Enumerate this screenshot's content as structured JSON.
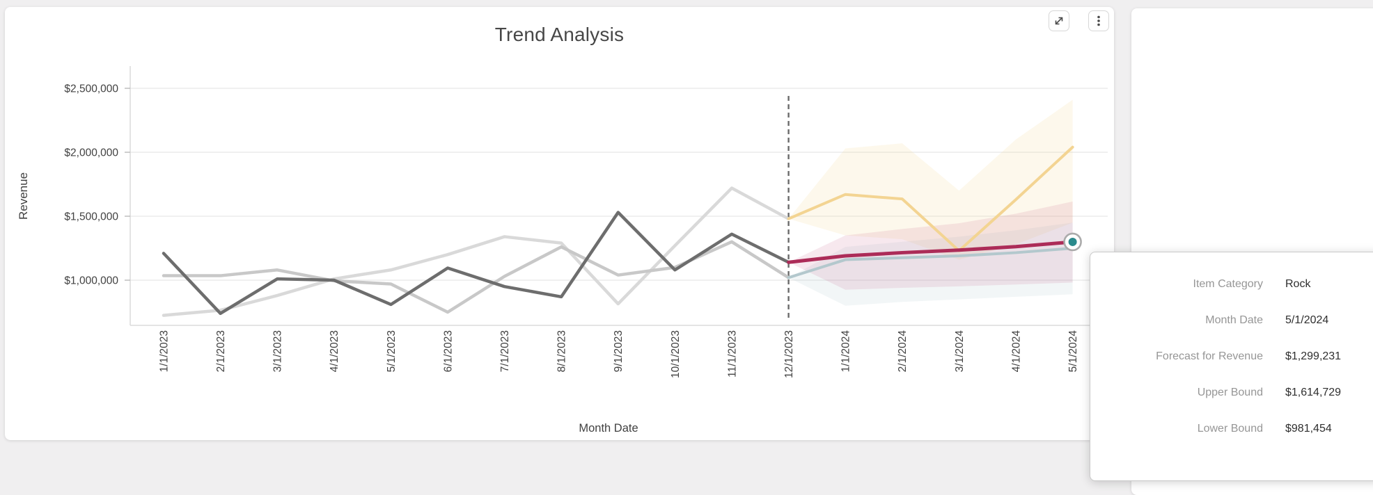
{
  "card": {
    "title": "Trend Analysis"
  },
  "toolbar": {
    "expand_icon": "expand-diagonal-arrows",
    "menu_icon": "kebab-vertical-dots"
  },
  "chart_data": {
    "type": "line",
    "title": "Trend Analysis",
    "xlabel": "Month Date",
    "ylabel": "Revenue",
    "x": [
      "1/1/2023",
      "2/1/2023",
      "3/1/2023",
      "4/1/2023",
      "5/1/2023",
      "6/1/2023",
      "7/1/2023",
      "8/1/2023",
      "9/1/2023",
      "10/1/2023",
      "11/1/2023",
      "12/1/2023",
      "1/1/2024",
      "2/1/2024",
      "3/1/2024",
      "4/1/2024",
      "5/1/2024"
    ],
    "forecast_start_index": 11,
    "forecast_divider_x": "12/1/2023",
    "y_axis": {
      "tick_values": [
        2500000,
        2000000,
        1500000,
        1000000
      ],
      "tick_labels": [
        "$2,500,000",
        "$2,000,000",
        "$1,500,000",
        "$1,000,000"
      ],
      "min": 645000,
      "max": 2600000,
      "grid": true
    },
    "bands": [
      {
        "name": "series3-forecast-band",
        "color": "#f5d795",
        "opacity": 0.18,
        "start_index": 11,
        "upper": [
          1480000,
          2030000,
          2070000,
          1700000,
          2100000,
          2410000
        ],
        "lower": [
          1480000,
          1350000,
          1320000,
          1160000,
          1280000,
          1450000
        ]
      },
      {
        "name": "series2-forecast-band",
        "color": "#9ab9c0",
        "opacity": 0.13,
        "start_index": 11,
        "upper": [
          1020000,
          1260000,
          1300000,
          1340000,
          1390000,
          1450000
        ],
        "lower": [
          1020000,
          800000,
          830000,
          850000,
          870000,
          890000
        ]
      },
      {
        "name": "rock-forecast-band",
        "color": "#c2517b",
        "opacity": 0.13,
        "start_index": 11,
        "upper": [
          1140000,
          1350000,
          1400000,
          1445000,
          1520000,
          1614729
        ],
        "lower": [
          1140000,
          925000,
          940000,
          952000,
          966000,
          981454
        ]
      }
    ],
    "series": [
      {
        "name": "series3-actual",
        "color": "#d9d9d9",
        "width": 4.5,
        "start_index": 0,
        "values": [
          725000,
          765000,
          880000,
          1010000,
          1080000,
          1200000,
          1340000,
          1290000,
          815000,
          1270000,
          1720000,
          1480000
        ]
      },
      {
        "name": "series2-actual",
        "color": "#c8c8c8",
        "width": 4.5,
        "start_index": 0,
        "values": [
          1035000,
          1035000,
          1080000,
          995000,
          970000,
          750000,
          1030000,
          1260000,
          1040000,
          1100000,
          1300000,
          1020000
        ]
      },
      {
        "name": "rock-actual",
        "color": "#6d6d6d",
        "width": 4.5,
        "start_index": 0,
        "values": [
          1210000,
          740000,
          1010000,
          1000000,
          810000,
          1095000,
          950000,
          870000,
          1530000,
          1080000,
          1360000,
          1140000
        ]
      },
      {
        "name": "series3-forecast",
        "color": "#f3d492",
        "width": 4,
        "start_index": 11,
        "values": [
          1480000,
          1670000,
          1635000,
          1230000,
          1630000,
          2040000
        ]
      },
      {
        "name": "series2-forecast",
        "color": "#b3c8cd",
        "width": 4,
        "start_index": 11,
        "values": [
          1020000,
          1160000,
          1175000,
          1190000,
          1215000,
          1250000
        ]
      },
      {
        "name": "rock-forecast",
        "color": "#ac2c58",
        "width": 5,
        "start_index": 11,
        "values": [
          1140000,
          1190000,
          1215000,
          1235000,
          1262000,
          1299231
        ]
      }
    ],
    "highlight_point": {
      "x": "5/1/2024",
      "value": 1299231,
      "fill": "#2a8a8c",
      "ring": "#ababab"
    },
    "divider_color": "#6b6b6b",
    "grid_color": "#ececec",
    "axis_line_color": "#dcdcdc",
    "tick_color": "#b9b9b9",
    "label_color": "#414141"
  },
  "tooltip": {
    "rows": [
      {
        "label": "Item Category",
        "value": "Rock"
      },
      {
        "label": "Month Date",
        "value": "5/1/2024"
      },
      {
        "label": "Forecast for Revenue",
        "value": "$1,299,231"
      },
      {
        "label": "Upper Bound",
        "value": "$1,614,729"
      },
      {
        "label": "Lower Bound",
        "value": "$981,454"
      }
    ]
  }
}
